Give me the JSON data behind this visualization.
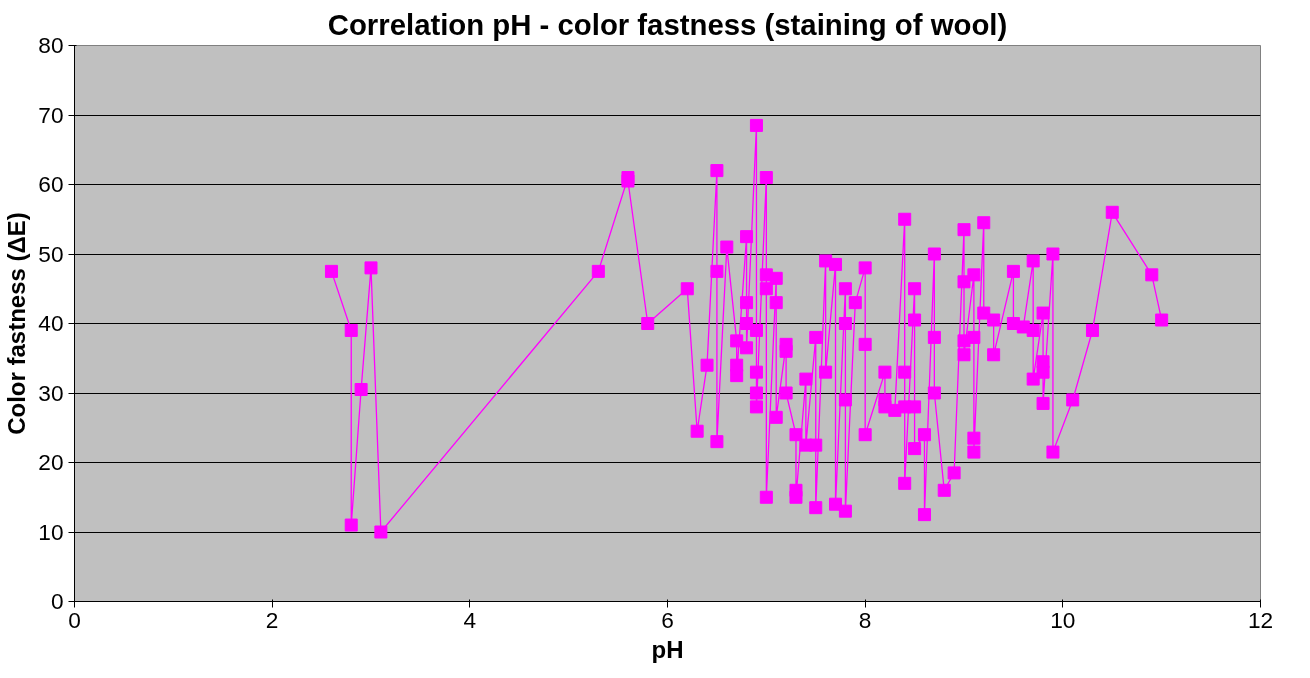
{
  "chart_data": {
    "type": "line",
    "title": "Correlation pH - color fastness (staining of wool)",
    "xlabel": "pH",
    "ylabel": "Color fastness (ΔE)",
    "xlim": [
      0,
      12
    ],
    "xticks": [
      0,
      2,
      4,
      6,
      8,
      10,
      12
    ],
    "ylim": [
      0,
      80
    ],
    "yticks": [
      0,
      10,
      20,
      30,
      40,
      50,
      60,
      70,
      80
    ],
    "grid": "y",
    "marker": "square",
    "line_style": "solid",
    "series": [
      {
        "color": "#ff00ff",
        "x": [
          2.6,
          2.8,
          2.8,
          2.9,
          3.0,
          3.1,
          5.3,
          5.6,
          5.6,
          5.8,
          6.2,
          6.3,
          6.4,
          6.5,
          6.5,
          6.5,
          6.6,
          6.7,
          6.7,
          6.7,
          6.8,
          6.8,
          6.8,
          6.8,
          6.9,
          6.9,
          6.9,
          6.9,
          6.9,
          7.0,
          7.0,
          7.0,
          7.0,
          7.1,
          7.1,
          7.1,
          7.2,
          7.2,
          7.2,
          7.3,
          7.3,
          7.3,
          7.4,
          7.4,
          7.5,
          7.5,
          7.5,
          7.6,
          7.6,
          7.7,
          7.7,
          7.8,
          7.8,
          7.8,
          7.8,
          7.9,
          8.0,
          8.0,
          8.0,
          8.2,
          8.2,
          8.2,
          8.3,
          8.4,
          8.4,
          8.4,
          8.4,
          8.5,
          8.5,
          8.5,
          8.5,
          8.6,
          8.6,
          8.7,
          8.7,
          8.7,
          8.8,
          8.9,
          9.0,
          9.0,
          9.0,
          9.0,
          9.1,
          9.1,
          9.1,
          9.1,
          9.2,
          9.2,
          9.3,
          9.3,
          9.5,
          9.5,
          9.6,
          9.7,
          9.7,
          9.7,
          9.8,
          9.8,
          9.8,
          9.8,
          9.9,
          9.9,
          10.1,
          10.3,
          10.5,
          10.9,
          11.0
        ],
        "values": [
          47.5,
          39,
          11,
          30.5,
          48,
          10,
          47.5,
          61,
          60.5,
          40,
          45,
          24.5,
          34,
          62,
          47.5,
          23,
          51,
          37.5,
          34,
          32.5,
          52.5,
          43,
          40,
          36.5,
          68.5,
          39,
          33,
          30,
          28,
          61,
          47,
          45,
          15,
          46.5,
          43,
          26.5,
          37,
          36,
          30,
          24,
          16,
          15,
          32,
          22.5,
          38,
          22.5,
          13.5,
          49,
          33,
          48.5,
          14,
          45,
          40,
          29,
          13,
          43,
          48,
          37,
          24,
          33,
          29,
          28,
          27.5,
          55,
          33,
          28,
          17,
          45,
          40.5,
          28,
          22,
          24,
          12.5,
          50,
          38,
          30,
          16,
          18.5,
          53.5,
          46,
          37.5,
          35.5,
          47,
          38,
          23.5,
          21.5,
          54.5,
          41.5,
          40.5,
          35.5,
          47.5,
          40,
          39.5,
          49,
          39,
          32,
          41.5,
          34.5,
          33,
          28.5,
          50,
          21.5,
          29,
          39,
          56,
          47,
          40.5
        ]
      }
    ]
  }
}
